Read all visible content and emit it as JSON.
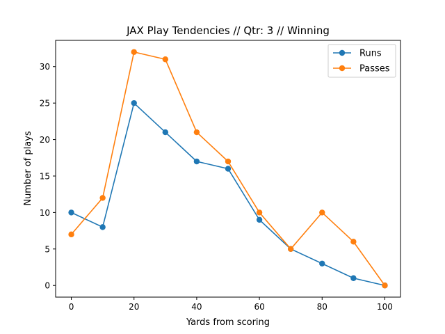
{
  "chart_data": {
    "type": "line",
    "title": "JAX Play Tendencies // Qtr: 3 // Winning",
    "xlabel": "Yards from scoring",
    "ylabel": "Number of plays",
    "x": [
      0,
      10,
      20,
      30,
      40,
      50,
      60,
      70,
      80,
      90,
      100
    ],
    "xlim": [
      -5,
      105
    ],
    "ylim": [
      -1.6,
      33.6
    ],
    "xticks": [
      0,
      20,
      40,
      60,
      80,
      100
    ],
    "yticks": [
      0,
      5,
      10,
      15,
      20,
      25,
      30
    ],
    "grid": false,
    "legend_position": "top-right",
    "series": [
      {
        "name": "Runs",
        "color": "#1f77b4",
        "values": [
          10,
          8,
          25,
          21,
          17,
          16,
          9,
          5,
          3,
          1,
          0
        ]
      },
      {
        "name": "Passes",
        "color": "#ff7f0e",
        "values": [
          7,
          12,
          32,
          31,
          21,
          17,
          10,
          5,
          10,
          6,
          0
        ]
      }
    ]
  }
}
